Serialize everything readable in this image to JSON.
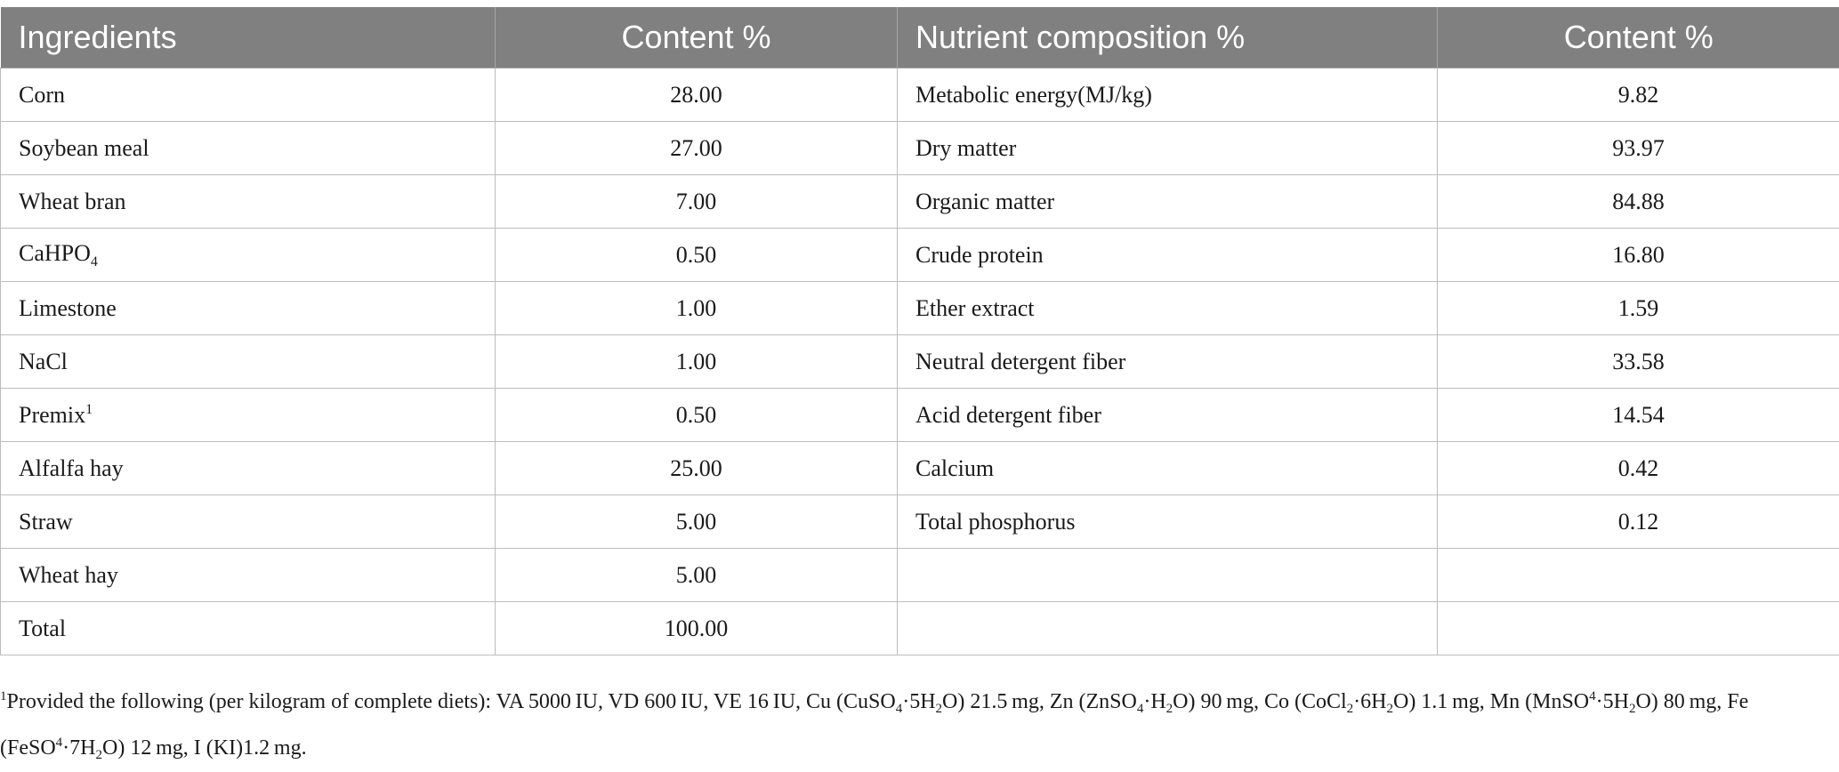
{
  "table": {
    "headers": [
      "Ingredients",
      "Content %",
      "Nutrient composition %",
      "Content %"
    ],
    "rows": [
      {
        "ingredient": "Corn",
        "ingredient_content": "28.00",
        "nutrient": "Metabolic energy(MJ/kg)",
        "nutrient_content": "9.82"
      },
      {
        "ingredient": "Soybean meal",
        "ingredient_content": "27.00",
        "nutrient": "Dry matter",
        "nutrient_content": "93.97"
      },
      {
        "ingredient": "Wheat bran",
        "ingredient_content": "7.00",
        "nutrient": "Organic matter",
        "nutrient_content": "84.88"
      },
      {
        "ingredient_base": "CaHPO",
        "ingredient_sub": "4",
        "ingredient_content": "0.50",
        "nutrient": "Crude protein",
        "nutrient_content": "16.80"
      },
      {
        "ingredient": "Limestone",
        "ingredient_content": "1.00",
        "nutrient": "Ether extract",
        "nutrient_content": "1.59"
      },
      {
        "ingredient": "NaCl",
        "ingredient_content": "1.00",
        "nutrient": "Neutral detergent fiber",
        "nutrient_content": "33.58"
      },
      {
        "ingredient_base": "Premix",
        "ingredient_sup": "1",
        "ingredient_content": "0.50",
        "nutrient": "Acid detergent fiber",
        "nutrient_content": "14.54"
      },
      {
        "ingredient": "Alfalfa hay",
        "ingredient_content": "25.00",
        "nutrient": "Calcium",
        "nutrient_content": "0.42"
      },
      {
        "ingredient": "Straw",
        "ingredient_content": "5.00",
        "nutrient": "Total phosphorus",
        "nutrient_content": "0.12"
      },
      {
        "ingredient": "Wheat hay",
        "ingredient_content": "5.00",
        "nutrient": "",
        "nutrient_content": ""
      },
      {
        "ingredient": "Total",
        "ingredient_content": "100.00",
        "nutrient": "",
        "nutrient_content": ""
      }
    ]
  },
  "footnote": {
    "marker": "1",
    "p1": "Provided the following (per kilogram of complete diets): VA 5000 IU, VD 600 IU, VE 16 IU, Cu (CuSO",
    "s1": "4",
    "p2": "·5H",
    "s2": "2",
    "p3": "O) 21.5 mg, Zn (ZnSO",
    "s3": "4",
    "p4": "·H",
    "s4": "2",
    "p5": "O) 90 mg, Co (CoCl",
    "s5": "2",
    "p6": "·6H",
    "s6": "2",
    "p7": "O) 1.1 mg, Mn (MnSO",
    "s7": "4",
    "p8": "·5H",
    "s8": "2",
    "p9": "O) 80 mg, Fe (FeSO",
    "s9": "4",
    "p10": "·7H",
    "s10": "2",
    "p11": "O) 12 mg, I (KI)1.2 mg."
  }
}
